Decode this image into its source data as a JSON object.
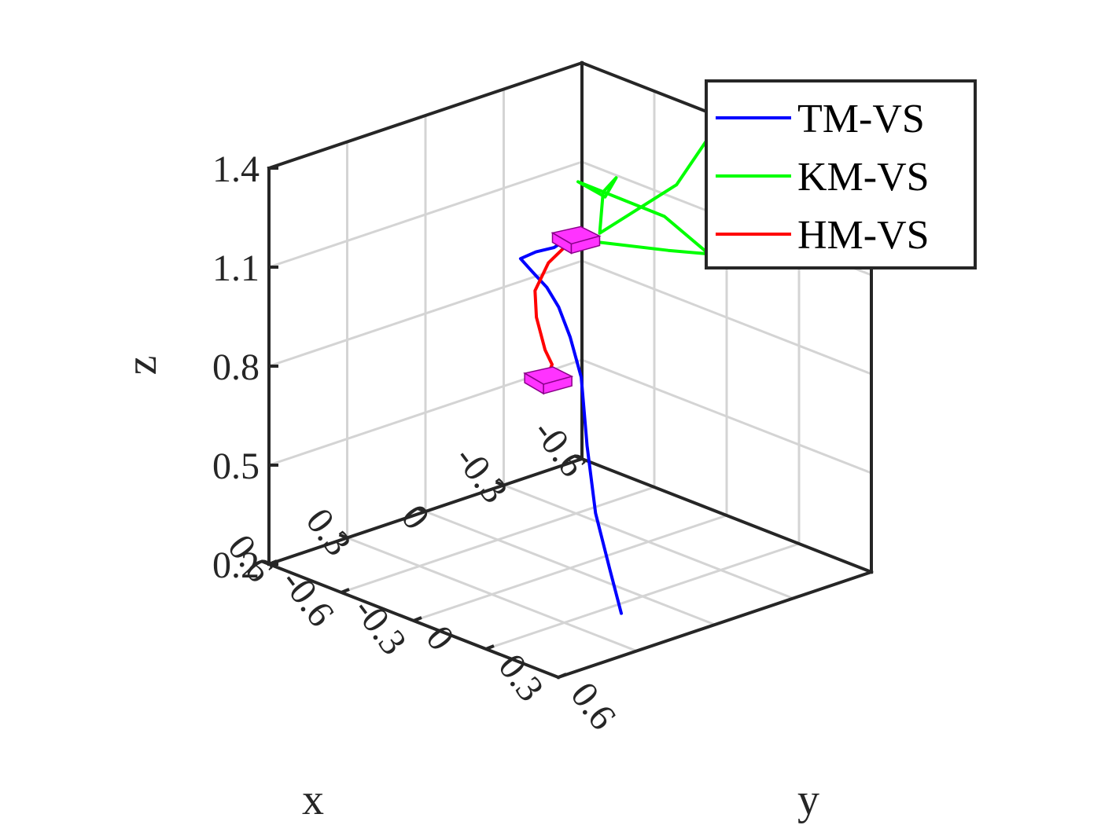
{
  "chart_data": {
    "type": "line",
    "title": "",
    "xlabel": "x",
    "ylabel": "y",
    "zlabel": "z",
    "xlim": [
      -0.6,
      0.6
    ],
    "ylim": [
      -0.6,
      0.6
    ],
    "zlim": [
      0.2,
      1.4
    ],
    "xticks": [
      "-0.6",
      "-0.3",
      "0",
      "0.3",
      "0.6"
    ],
    "yticks": [
      "-0.6",
      "-0.3",
      "0",
      "0.3",
      "0.6"
    ],
    "zticks": [
      "0.2",
      "0.5",
      "0.8",
      "1.1",
      "1.4"
    ],
    "grid": true,
    "legend_position": "top-right",
    "series": [
      {
        "name": "TM-VS",
        "color": "#0000ff",
        "points": [
          [
            0.22,
            0.45,
            0.25
          ],
          [
            0.2,
            0.38,
            0.36
          ],
          [
            0.18,
            0.3,
            0.5
          ],
          [
            0.12,
            0.2,
            0.66
          ],
          [
            0.05,
            0.1,
            0.82
          ],
          [
            0.0,
            0.0,
            0.9
          ],
          [
            -0.03,
            -0.08,
            0.96
          ],
          [
            -0.04,
            -0.14,
            1.0
          ],
          [
            -0.04,
            -0.2,
            1.03
          ],
          [
            -0.05,
            -0.26,
            1.05
          ],
          [
            -0.1,
            -0.25,
            1.06
          ],
          [
            -0.16,
            -0.24,
            1.06
          ],
          [
            -0.2,
            -0.24,
            1.07
          ]
        ]
      },
      {
        "name": "KM-VS",
        "color": "#00ff00",
        "points": [
          [
            -0.2,
            -0.25,
            1.08
          ],
          [
            -0.3,
            -0.2,
            1.05
          ],
          [
            -0.45,
            -0.08,
            1.02
          ],
          [
            -0.55,
            -0.02,
            1.0
          ],
          [
            -0.5,
            -0.15,
            1.09
          ],
          [
            -0.4,
            -0.4,
            1.15
          ],
          [
            -0.55,
            -0.45,
            1.05
          ],
          [
            -0.5,
            -0.35,
            1.15
          ],
          [
            -0.45,
            -0.35,
            1.12
          ],
          [
            -0.4,
            -0.31,
            1.02
          ],
          [
            -0.5,
            -0.1,
            1.2
          ],
          [
            -0.45,
            0.08,
            1.4
          ],
          [
            -0.48,
            0.08,
            1.42
          ]
        ]
      },
      {
        "name": "HM-VS",
        "color": "#ff0000",
        "points": [
          [
            -0.22,
            -0.22,
            1.08
          ],
          [
            -0.12,
            -0.22,
            1.03
          ],
          [
            -0.05,
            -0.2,
            0.97
          ],
          [
            0.0,
            -0.14,
            0.92
          ],
          [
            0.05,
            -0.05,
            0.86
          ],
          [
            0.06,
            -0.01,
            0.83
          ],
          [
            0.09,
            0.0,
            0.8
          ]
        ]
      }
    ],
    "markers": [
      {
        "shape": "box",
        "color": "#ff33ff",
        "center": [
          -0.22,
          -0.22,
          1.08
        ]
      },
      {
        "shape": "box",
        "color": "#ff33ff",
        "center": [
          0.09,
          0.0,
          0.8
        ]
      }
    ]
  }
}
